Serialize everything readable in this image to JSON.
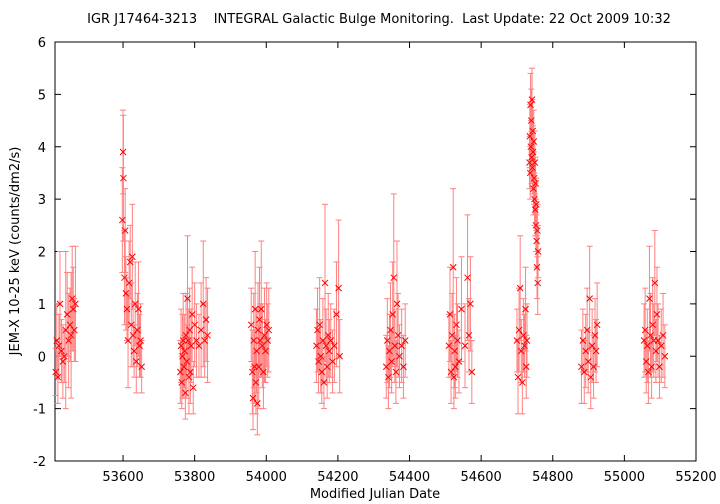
{
  "chart_data": {
    "type": "scatter",
    "title": "IGR J17464-3213    INTEGRAL Galactic Bulge Monitoring.  Last Update: 22 Oct 2009 10:32",
    "xlabel": "Modified Julian Date",
    "ylabel": "JEM-X 10-25 keV (counts/dm2/s)",
    "xlim": [
      53410,
      55200
    ],
    "ylim": [
      -2,
      6
    ],
    "x_ticks": [
      53600,
      53800,
      54000,
      54200,
      54400,
      54600,
      54800,
      55000,
      55200
    ],
    "y_ticks": [
      -2,
      -1,
      0,
      1,
      2,
      3,
      4,
      5,
      6
    ],
    "grid": false,
    "marker": "x",
    "color": "#ff0000",
    "error_bar_color": "#ff8080",
    "series": [
      {
        "points": [
          {
            "x": 53412,
            "y": -0.3,
            "err": 0.45
          },
          {
            "x": 53415,
            "y": 0.3,
            "err": 0.7
          },
          {
            "x": 53418,
            "y": -0.4,
            "err": 0.5
          },
          {
            "x": 53421,
            "y": 0.2,
            "err": 0.6
          },
          {
            "x": 53424,
            "y": 1.0,
            "err": 1.0
          },
          {
            "x": 53428,
            "y": 0.1,
            "err": 0.6
          },
          {
            "x": 53432,
            "y": -0.1,
            "err": 0.7
          },
          {
            "x": 53436,
            "y": 0.0,
            "err": 0.5
          },
          {
            "x": 53440,
            "y": 0.5,
            "err": 1.5
          },
          {
            "x": 53444,
            "y": 0.8,
            "err": 0.8
          },
          {
            "x": 53448,
            "y": 0.3,
            "err": 0.9
          },
          {
            "x": 53452,
            "y": 0.6,
            "err": 0.7
          },
          {
            "x": 53455,
            "y": 0.4,
            "err": 1.2
          },
          {
            "x": 53458,
            "y": 1.1,
            "err": 1.0
          },
          {
            "x": 53461,
            "y": 0.9,
            "err": 0.8
          },
          {
            "x": 53464,
            "y": 0.5,
            "err": 0.6
          },
          {
            "x": 53467,
            "y": 1.0,
            "err": 1.1
          },
          {
            "x": 53598,
            "y": 2.6,
            "err": 1.0
          },
          {
            "x": 53600,
            "y": 3.9,
            "err": 0.8
          },
          {
            "x": 53601,
            "y": 3.4,
            "err": 1.2
          },
          {
            "x": 53604,
            "y": 1.5,
            "err": 0.9
          },
          {
            "x": 53606,
            "y": 2.4,
            "err": 0.8
          },
          {
            "x": 53608,
            "y": 1.2,
            "err": 0.7
          },
          {
            "x": 53611,
            "y": 0.9,
            "err": 0.6
          },
          {
            "x": 53614,
            "y": 0.3,
            "err": 0.9
          },
          {
            "x": 53617,
            "y": 1.4,
            "err": 0.8
          },
          {
            "x": 53620,
            "y": 1.8,
            "err": 0.7
          },
          {
            "x": 53623,
            "y": 0.6,
            "err": 0.8
          },
          {
            "x": 53626,
            "y": 1.9,
            "err": 1.0
          },
          {
            "x": 53628,
            "y": 0.4,
            "err": 0.6
          },
          {
            "x": 53631,
            "y": 0.1,
            "err": 0.5
          },
          {
            "x": 53634,
            "y": 1.0,
            "err": 0.8
          },
          {
            "x": 53637,
            "y": -0.1,
            "err": 0.6
          },
          {
            "x": 53640,
            "y": 0.5,
            "err": 0.7
          },
          {
            "x": 53643,
            "y": 0.9,
            "err": 0.9
          },
          {
            "x": 53646,
            "y": 0.2,
            "err": 0.6
          },
          {
            "x": 53649,
            "y": 0.3,
            "err": 0.7
          },
          {
            "x": 53652,
            "y": -0.2,
            "err": 0.5
          },
          {
            "x": 53760,
            "y": -0.3,
            "err": 0.6
          },
          {
            "x": 53762,
            "y": 0.2,
            "err": 0.7
          },
          {
            "x": 53764,
            "y": -0.5,
            "err": 0.5
          },
          {
            "x": 53766,
            "y": 0.0,
            "err": 0.8
          },
          {
            "x": 53768,
            "y": 0.3,
            "err": 0.9
          },
          {
            "x": 53770,
            "y": -0.2,
            "err": 0.6
          },
          {
            "x": 53772,
            "y": 0.1,
            "err": 0.7
          },
          {
            "x": 53774,
            "y": -0.7,
            "err": 0.5
          },
          {
            "x": 53776,
            "y": 0.4,
            "err": 0.8
          },
          {
            "x": 53778,
            "y": -0.1,
            "err": 0.7
          },
          {
            "x": 53780,
            "y": 1.1,
            "err": 1.2
          },
          {
            "x": 53782,
            "y": 0.3,
            "err": 0.6
          },
          {
            "x": 53784,
            "y": -0.4,
            "err": 0.7
          },
          {
            "x": 53786,
            "y": 0.5,
            "err": 0.8
          },
          {
            "x": 53788,
            "y": -0.3,
            "err": 0.6
          },
          {
            "x": 53790,
            "y": 0.2,
            "err": 0.7
          },
          {
            "x": 53793,
            "y": 0.8,
            "err": 0.9
          },
          {
            "x": 53796,
            "y": -0.6,
            "err": 0.5
          },
          {
            "x": 53800,
            "y": 0.6,
            "err": 0.8
          },
          {
            "x": 53805,
            "y": 0.3,
            "err": 0.7
          },
          {
            "x": 53812,
            "y": 0.2,
            "err": 0.6
          },
          {
            "x": 53818,
            "y": 0.5,
            "err": 0.9
          },
          {
            "x": 53824,
            "y": 1.0,
            "err": 1.2
          },
          {
            "x": 53828,
            "y": 0.3,
            "err": 0.7
          },
          {
            "x": 53832,
            "y": 0.7,
            "err": 0.8
          },
          {
            "x": 53836,
            "y": 0.4,
            "err": 0.9
          },
          {
            "x": 53958,
            "y": 0.6,
            "err": 0.7
          },
          {
            "x": 53961,
            "y": -0.3,
            "err": 0.8
          },
          {
            "x": 53963,
            "y": -0.8,
            "err": 0.6
          },
          {
            "x": 53965,
            "y": 0.3,
            "err": 0.9
          },
          {
            "x": 53967,
            "y": -0.2,
            "err": 0.7
          },
          {
            "x": 53969,
            "y": 0.9,
            "err": 1.1
          },
          {
            "x": 53971,
            "y": -0.5,
            "err": 0.6
          },
          {
            "x": 53973,
            "y": 0.1,
            "err": 0.8
          },
          {
            "x": 53975,
            "y": -0.9,
            "err": 0.6
          },
          {
            "x": 53977,
            "y": 0.5,
            "err": 0.9
          },
          {
            "x": 53979,
            "y": -0.2,
            "err": 0.8
          },
          {
            "x": 53981,
            "y": 0.7,
            "err": 1.0
          },
          {
            "x": 53983,
            "y": 0.3,
            "err": 0.7
          },
          {
            "x": 53986,
            "y": 0.9,
            "err": 1.3
          },
          {
            "x": 53989,
            "y": 0.2,
            "err": 0.8
          },
          {
            "x": 53992,
            "y": -0.3,
            "err": 0.7
          },
          {
            "x": 53995,
            "y": 0.4,
            "err": 0.9
          },
          {
            "x": 53998,
            "y": 0.1,
            "err": 0.6
          },
          {
            "x": 54001,
            "y": 0.6,
            "err": 0.8
          },
          {
            "x": 54004,
            "y": 0.3,
            "err": 0.7
          },
          {
            "x": 54007,
            "y": 0.5,
            "err": 0.8
          },
          {
            "x": 54140,
            "y": 0.2,
            "err": 0.7
          },
          {
            "x": 54143,
            "y": 0.5,
            "err": 0.8
          },
          {
            "x": 54146,
            "y": -0.1,
            "err": 0.6
          },
          {
            "x": 54149,
            "y": 0.6,
            "err": 0.9
          },
          {
            "x": 54152,
            "y": 0.0,
            "err": 0.7
          },
          {
            "x": 54155,
            "y": -0.3,
            "err": 0.6
          },
          {
            "x": 54158,
            "y": 0.3,
            "err": 0.8
          },
          {
            "x": 54161,
            "y": -0.5,
            "err": 0.5
          },
          {
            "x": 54164,
            "y": 1.4,
            "err": 1.5
          },
          {
            "x": 54167,
            "y": 0.2,
            "err": 0.7
          },
          {
            "x": 54170,
            "y": -0.2,
            "err": 0.6
          },
          {
            "x": 54173,
            "y": 0.4,
            "err": 0.8
          },
          {
            "x": 54176,
            "y": 0.1,
            "err": 0.6
          },
          {
            "x": 54180,
            "y": 0.3,
            "err": 0.7
          },
          {
            "x": 54185,
            "y": -0.1,
            "err": 0.6
          },
          {
            "x": 54190,
            "y": 0.2,
            "err": 0.7
          },
          {
            "x": 54196,
            "y": 0.8,
            "err": 1.0
          },
          {
            "x": 54202,
            "y": 1.3,
            "err": 1.3
          },
          {
            "x": 54205,
            "y": 0.0,
            "err": 0.7
          },
          {
            "x": 54335,
            "y": -0.2,
            "err": 0.6
          },
          {
            "x": 54338,
            "y": 0.3,
            "err": 0.8
          },
          {
            "x": 54341,
            "y": -0.4,
            "err": 0.6
          },
          {
            "x": 54344,
            "y": 0.1,
            "err": 0.7
          },
          {
            "x": 54347,
            "y": 0.5,
            "err": 0.9
          },
          {
            "x": 54350,
            "y": -0.1,
            "err": 0.6
          },
          {
            "x": 54353,
            "y": 0.8,
            "err": 1.0
          },
          {
            "x": 54356,
            "y": 1.5,
            "err": 1.6
          },
          {
            "x": 54359,
            "y": 0.2,
            "err": 0.7
          },
          {
            "x": 54362,
            "y": -0.3,
            "err": 0.6
          },
          {
            "x": 54365,
            "y": 1.0,
            "err": 1.2
          },
          {
            "x": 54368,
            "y": 0.4,
            "err": 0.8
          },
          {
            "x": 54372,
            "y": 0.0,
            "err": 0.6
          },
          {
            "x": 54378,
            "y": 0.2,
            "err": 0.7
          },
          {
            "x": 54383,
            "y": -0.2,
            "err": 0.6
          },
          {
            "x": 54388,
            "y": 0.3,
            "err": 0.7
          },
          {
            "x": 54510,
            "y": 0.2,
            "err": 0.6
          },
          {
            "x": 54513,
            "y": 0.8,
            "err": 0.9
          },
          {
            "x": 54516,
            "y": -0.3,
            "err": 0.6
          },
          {
            "x": 54519,
            "y": 0.4,
            "err": 0.8
          },
          {
            "x": 54522,
            "y": 1.7,
            "err": 1.5
          },
          {
            "x": 54524,
            "y": -0.4,
            "err": 0.6
          },
          {
            "x": 54526,
            "y": 0.1,
            "err": 0.7
          },
          {
            "x": 54528,
            "y": -0.2,
            "err": 0.6
          },
          {
            "x": 54531,
            "y": 0.6,
            "err": 0.9
          },
          {
            "x": 54534,
            "y": 0.3,
            "err": 0.7
          },
          {
            "x": 54538,
            "y": -0.1,
            "err": 0.6
          },
          {
            "x": 54545,
            "y": 0.9,
            "err": 1.0
          },
          {
            "x": 54555,
            "y": 0.2,
            "err": 0.8
          },
          {
            "x": 54562,
            "y": 1.5,
            "err": 1.2
          },
          {
            "x": 54566,
            "y": 0.4,
            "err": 0.7
          },
          {
            "x": 54570,
            "y": 1.0,
            "err": 0.9
          },
          {
            "x": 54574,
            "y": -0.3,
            "err": 0.6
          },
          {
            "x": 54700,
            "y": 0.3,
            "err": 0.6
          },
          {
            "x": 54703,
            "y": -0.4,
            "err": 0.7
          },
          {
            "x": 54706,
            "y": 0.5,
            "err": 0.8
          },
          {
            "x": 54709,
            "y": 1.3,
            "err": 1.0
          },
          {
            "x": 54712,
            "y": 0.1,
            "err": 0.6
          },
          {
            "x": 54715,
            "y": -0.5,
            "err": 0.6
          },
          {
            "x": 54718,
            "y": 0.4,
            "err": 0.7
          },
          {
            "x": 54721,
            "y": 0.2,
            "err": 0.6
          },
          {
            "x": 54724,
            "y": 0.9,
            "err": 0.8
          },
          {
            "x": 54726,
            "y": -0.2,
            "err": 0.6
          },
          {
            "x": 54728,
            "y": 0.3,
            "err": 0.7
          },
          {
            "x": 54735,
            "y": 3.7,
            "err": 0.5
          },
          {
            "x": 54736,
            "y": 4.2,
            "err": 0.6
          },
          {
            "x": 54737,
            "y": 3.5,
            "err": 0.5
          },
          {
            "x": 54738,
            "y": 4.8,
            "err": 0.6
          },
          {
            "x": 54739,
            "y": 4.0,
            "err": 0.5
          },
          {
            "x": 54740,
            "y": 4.5,
            "err": 0.6
          },
          {
            "x": 54741,
            "y": 3.8,
            "err": 0.5
          },
          {
            "x": 54742,
            "y": 4.9,
            "err": 0.6
          },
          {
            "x": 54743,
            "y": 3.6,
            "err": 0.5
          },
          {
            "x": 54744,
            "y": 4.3,
            "err": 0.6
          },
          {
            "x": 54745,
            "y": 3.9,
            "err": 0.5
          },
          {
            "x": 54746,
            "y": 3.2,
            "err": 0.5
          },
          {
            "x": 54747,
            "y": 4.1,
            "err": 0.6
          },
          {
            "x": 54748,
            "y": 3.4,
            "err": 0.5
          },
          {
            "x": 54749,
            "y": 3.0,
            "err": 0.5
          },
          {
            "x": 54750,
            "y": 3.7,
            "err": 0.6
          },
          {
            "x": 54751,
            "y": 2.8,
            "err": 0.5
          },
          {
            "x": 54752,
            "y": 3.3,
            "err": 0.5
          },
          {
            "x": 54753,
            "y": 2.5,
            "err": 0.5
          },
          {
            "x": 54754,
            "y": 2.9,
            "err": 0.5
          },
          {
            "x": 54755,
            "y": 2.2,
            "err": 0.5
          },
          {
            "x": 54756,
            "y": 1.7,
            "err": 0.6
          },
          {
            "x": 54757,
            "y": 2.4,
            "err": 0.5
          },
          {
            "x": 54758,
            "y": 1.4,
            "err": 0.6
          },
          {
            "x": 54759,
            "y": 2.0,
            "err": 0.5
          },
          {
            "x": 54880,
            "y": -0.2,
            "err": 0.7
          },
          {
            "x": 54884,
            "y": 0.3,
            "err": 0.6
          },
          {
            "x": 54888,
            "y": -0.3,
            "err": 0.6
          },
          {
            "x": 54892,
            "y": 0.1,
            "err": 0.7
          },
          {
            "x": 54896,
            "y": 0.5,
            "err": 0.8
          },
          {
            "x": 54899,
            "y": -0.1,
            "err": 0.6
          },
          {
            "x": 54903,
            "y": 1.1,
            "err": 1.0
          },
          {
            "x": 54906,
            "y": -0.4,
            "err": 0.6
          },
          {
            "x": 54910,
            "y": 0.2,
            "err": 0.7
          },
          {
            "x": 54914,
            "y": -0.2,
            "err": 0.6
          },
          {
            "x": 54918,
            "y": 0.4,
            "err": 0.7
          },
          {
            "x": 54921,
            "y": 0.1,
            "err": 0.6
          },
          {
            "x": 54924,
            "y": 0.6,
            "err": 0.8
          },
          {
            "x": 55055,
            "y": 0.3,
            "err": 0.7
          },
          {
            "x": 55058,
            "y": 0.5,
            "err": 0.8
          },
          {
            "x": 55061,
            "y": -0.1,
            "err": 0.6
          },
          {
            "x": 55064,
            "y": 0.2,
            "err": 0.7
          },
          {
            "x": 55067,
            "y": -0.3,
            "err": 0.6
          },
          {
            "x": 55070,
            "y": 1.1,
            "err": 1.0
          },
          {
            "x": 55073,
            "y": 0.4,
            "err": 0.8
          },
          {
            "x": 55076,
            "y": -0.2,
            "err": 0.6
          },
          {
            "x": 55079,
            "y": 0.6,
            "err": 0.9
          },
          {
            "x": 55082,
            "y": 0.3,
            "err": 0.7
          },
          {
            "x": 55085,
            "y": 1.4,
            "err": 1.0
          },
          {
            "x": 55088,
            "y": 0.1,
            "err": 0.6
          },
          {
            "x": 55091,
            "y": 0.8,
            "err": 0.9
          },
          {
            "x": 55094,
            "y": 0.3,
            "err": 0.7
          },
          {
            "x": 55098,
            "y": -0.2,
            "err": 0.6
          },
          {
            "x": 55103,
            "y": 0.2,
            "err": 0.7
          },
          {
            "x": 55108,
            "y": 0.4,
            "err": 0.8
          },
          {
            "x": 55113,
            "y": 0.0,
            "err": 0.6
          }
        ]
      }
    ]
  }
}
